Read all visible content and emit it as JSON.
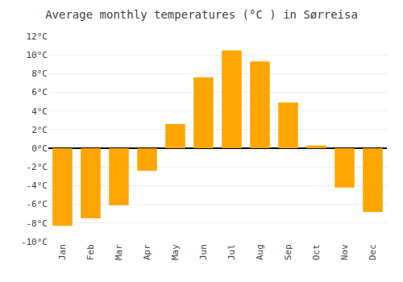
{
  "chart_data": {
    "type": "bar",
    "title": "Average monthly temperatures (°C ) in Sørreisa",
    "categories": [
      "Jan",
      "Feb",
      "Mar",
      "Apr",
      "May",
      "Jun",
      "Jul",
      "Aug",
      "Sep",
      "Oct",
      "Nov",
      "Dec"
    ],
    "values": [
      -8.3,
      -7.5,
      -6.1,
      -2.4,
      2.6,
      7.6,
      10.5,
      9.3,
      4.9,
      0.3,
      -4.2,
      -6.8
    ],
    "color": "#FFA500",
    "ylim": [
      -10,
      12
    ],
    "yticks": [
      {
        "value": -10,
        "label": "-10°C"
      },
      {
        "value": -8,
        "label": "-8°C"
      },
      {
        "value": -6,
        "label": "-6°C"
      },
      {
        "value": -4,
        "label": "-4°C"
      },
      {
        "value": -2,
        "label": "-2°C"
      },
      {
        "value": 0,
        "label": "0°C"
      },
      {
        "value": 2,
        "label": "2°C"
      },
      {
        "value": 4,
        "label": "4°C"
      },
      {
        "value": 6,
        "label": "6°C"
      },
      {
        "value": 8,
        "label": "8°C"
      },
      {
        "value": 10,
        "label": "10°C"
      },
      {
        "value": 12,
        "label": "12°C"
      }
    ],
    "grid": true
  }
}
